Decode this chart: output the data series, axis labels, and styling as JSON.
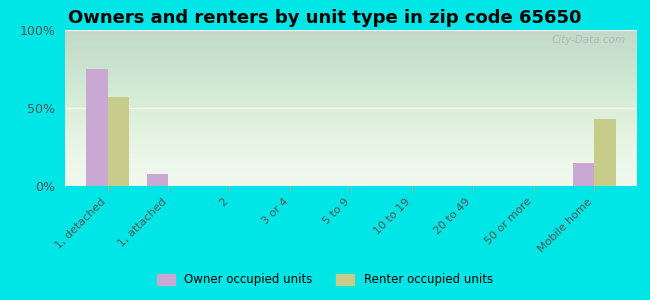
{
  "title": "Owners and renters by unit type in zip code 65650",
  "categories": [
    "1, detached",
    "1, attached",
    "2",
    "3 or 4",
    "5 to 9",
    "10 to 19",
    "20 to 49",
    "50 or more",
    "Mobile home"
  ],
  "owner_values": [
    75,
    8,
    0,
    0,
    0,
    0,
    0,
    0,
    15
  ],
  "renter_values": [
    57,
    0,
    0,
    0,
    0,
    0,
    0,
    0,
    43
  ],
  "owner_color": "#c9a8d4",
  "renter_color": "#c8cc8a",
  "background_color": "#00e5e5",
  "ylim": [
    0,
    100
  ],
  "yticks": [
    0,
    50,
    100
  ],
  "ytick_labels": [
    "0%",
    "50%",
    "100%"
  ],
  "bar_width": 0.35,
  "title_fontsize": 13,
  "legend_labels": [
    "Owner occupied units",
    "Renter occupied units"
  ],
  "watermark": "City-Data.com"
}
